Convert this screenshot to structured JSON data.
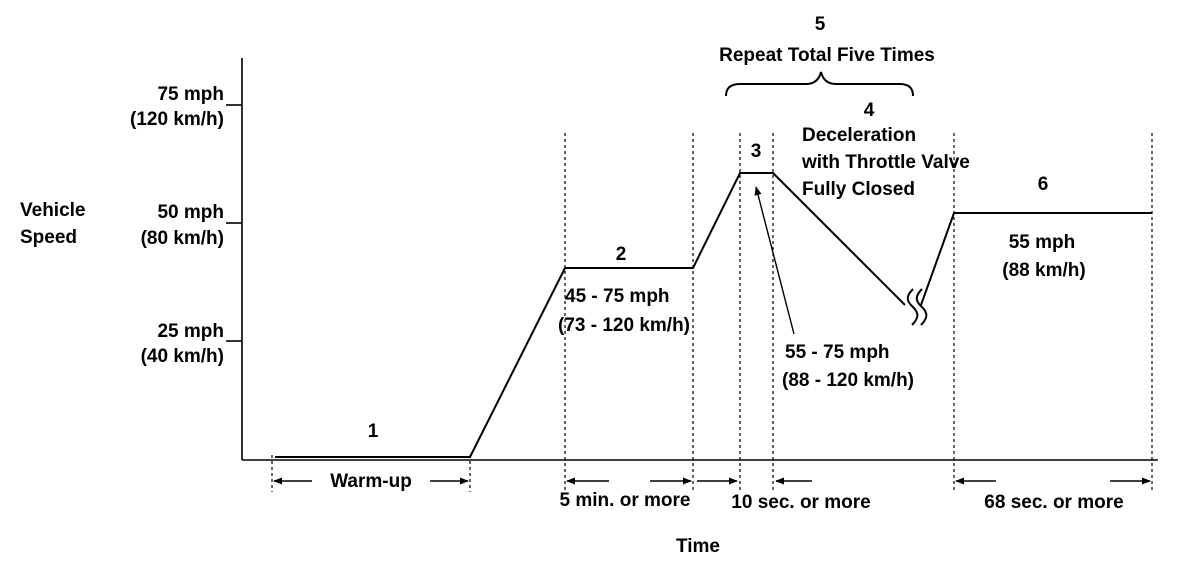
{
  "axis": {
    "y_title": [
      "Vehicle",
      "Speed"
    ],
    "x_title": "Time",
    "y_ticks": [
      {
        "mph": "75 mph",
        "kmh": "(120 km/h)"
      },
      {
        "mph": "50 mph",
        "kmh": "(80 km/h)"
      },
      {
        "mph": "25 mph",
        "kmh": "(40 km/h)"
      }
    ]
  },
  "steps": {
    "s1": "1",
    "s2": "2",
    "s3": "3",
    "s4": "4",
    "s5": "5",
    "s6": "6"
  },
  "labels": {
    "repeat": "Repeat Total Five Times",
    "decel": [
      "Deceleration",
      "with Throttle Valve",
      "Fully Closed"
    ],
    "step2_speed": [
      "45 - 75 mph",
      "(73 - 120 km/h)"
    ],
    "step3_speed": [
      "55 - 75 mph",
      "(88 - 120 km/h)"
    ],
    "step6_speed": [
      "55 mph",
      "(88 km/h)"
    ]
  },
  "durations": {
    "warmup": "Warm-up",
    "d2": "5 min. or more",
    "d3": "10 sec. or more",
    "d6": "68 sec. or more"
  }
}
